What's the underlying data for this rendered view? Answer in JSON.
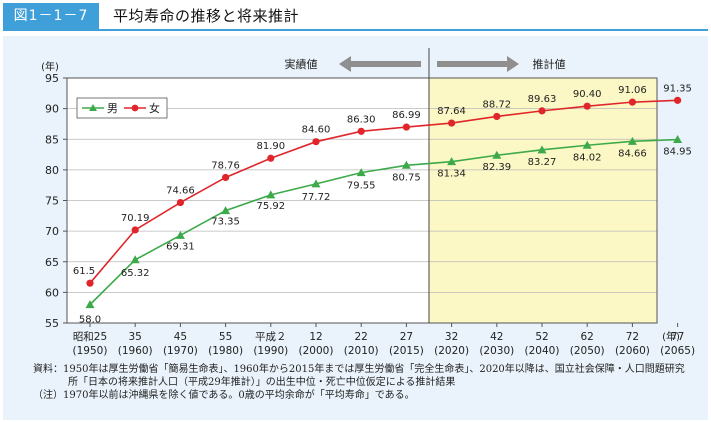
{
  "figure_label": "図1－1－7",
  "title": "平均寿命の推移と将来推計",
  "chart_data": {
    "type": "line",
    "y_unit": "(年)",
    "x_unit": "(年)",
    "ylim": [
      55,
      95
    ],
    "yticks": [
      55,
      60,
      65,
      70,
      75,
      80,
      85,
      90,
      95
    ],
    "grid": true,
    "legend_position": "top-left",
    "projection_shaded": true,
    "categories": [
      {
        "era": "昭和25",
        "year": "(1950)"
      },
      {
        "era": "35",
        "year": "(1960)"
      },
      {
        "era": "45",
        "year": "(1970)"
      },
      {
        "era": "55",
        "year": "(1980)"
      },
      {
        "era": "平成２",
        "year": "(1990)"
      },
      {
        "era": "12",
        "year": "(2000)"
      },
      {
        "era": "22",
        "year": "(2010)"
      },
      {
        "era": "27",
        "year": "(2015)"
      },
      {
        "era": "32",
        "year": "(2020)"
      },
      {
        "era": "42",
        "year": "(2030)"
      },
      {
        "era": "52",
        "year": "(2040)"
      },
      {
        "era": "62",
        "year": "(2050)"
      },
      {
        "era": "72",
        "year": "(2060)"
      },
      {
        "era": "77",
        "year": "(2065)"
      }
    ],
    "actual_label": "実績値",
    "projection_label": "推計値",
    "series": [
      {
        "name": "男",
        "color": "#3daa4a",
        "marker": "triangle",
        "values": [
          58.0,
          65.32,
          69.31,
          73.35,
          75.92,
          77.72,
          79.55,
          80.75,
          81.34,
          82.39,
          83.27,
          84.02,
          84.66,
          84.95
        ],
        "labels": [
          "58.0",
          "65.32",
          "69.31",
          "73.35",
          "75.92",
          "77.72",
          "79.55",
          "80.75",
          "81.34",
          "82.39",
          "83.27",
          "84.02",
          "84.66",
          "84.95"
        ]
      },
      {
        "name": "女",
        "color": "#e0262b",
        "marker": "circle",
        "values": [
          61.5,
          70.19,
          74.66,
          78.76,
          81.9,
          84.6,
          86.3,
          86.99,
          87.64,
          88.72,
          89.63,
          90.4,
          91.06,
          91.35
        ],
        "labels": [
          "61.5",
          "70.19",
          "74.66",
          "78.76",
          "81.90",
          "84.60",
          "86.30",
          "86.99",
          "87.64",
          "88.72",
          "89.63",
          "90.40",
          "91.06",
          "91.35"
        ]
      }
    ]
  },
  "notes": {
    "line1": "資料：1950年は厚生労働省「簡易生命表」、1960年から2015年までは厚生労働省「完全生命表」、2020年以降は、国立社会保障・人口問題研究",
    "line2": "所「日本の将来推計人口（平成29年推計）」の出生中位・死亡中位仮定による推計結果",
    "line3": "（注）1970年以前は沖縄県を除く値である。0歳の平均余命が「平均寿命」である。"
  }
}
